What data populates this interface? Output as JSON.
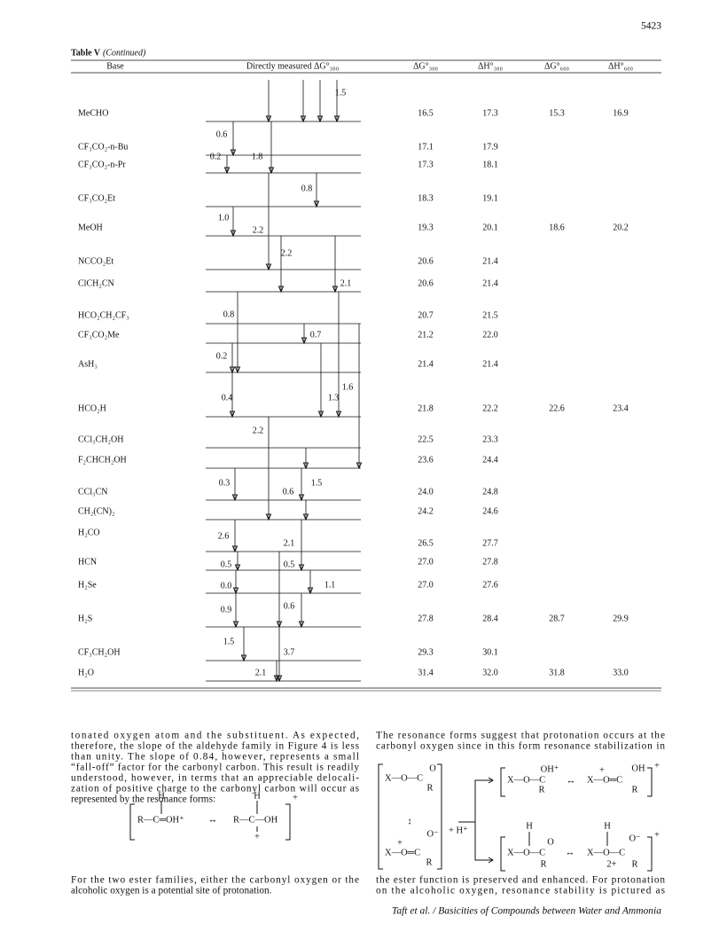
{
  "page_number": "5423",
  "table": {
    "caption": "Table V",
    "caption_note": "(Continued)",
    "headers": [
      "Base",
      "Directly measured ΔG°₃₀₀",
      "ΔG°₃₀₀",
      "ΔH°₃₀₀",
      "ΔG°₆₀₀",
      "ΔH°₆₀₀"
    ],
    "rows": [
      [
        "MeCHO",
        "16.5",
        "17.3",
        "15.3",
        "16.9"
      ],
      [
        "CF₃CO₂-n-Bu",
        "17.1",
        "17.9"
      ],
      [
        "CF₃CO₂-n-Pr",
        "17.3",
        "18.1"
      ],
      [
        "CF₃CO₂Et",
        "18.3",
        "19.1"
      ],
      [
        "MeOH",
        "19.3",
        "20.1",
        "18.6",
        "20.2"
      ],
      [
        "NCCO₂Et",
        "20.6",
        "21.4"
      ],
      [
        "ClCH₂CN",
        "20.6",
        "21.4"
      ],
      [
        "HCO₂CH₂CF₃",
        "20.7",
        "21.5"
      ],
      [
        "CF₃CO₂Me",
        "21.2",
        "22.0"
      ],
      [
        "AsH₃",
        "21.4",
        "21.4"
      ],
      [
        "HCO₂H",
        "21.8",
        "22.2",
        "22.6",
        "23.4"
      ],
      [
        "CCl₃CH₂OH",
        "22.5",
        "23.3"
      ],
      [
        "F₂CHCH₂OH",
        "23.6",
        "24.4"
      ],
      [
        "CCl₃CN",
        "24.0",
        "24.8"
      ],
      [
        "CH₂(CN)₂",
        "24.2",
        "24.6"
      ],
      [
        "H₂CO",
        "26.5",
        "27.7"
      ],
      [
        "HCN",
        "27.0",
        "27.8"
      ],
      [
        "H₂Se",
        "27.0",
        "27.6"
      ],
      [
        "H₂S",
        "27.8",
        "28.4",
        "28.7",
        "29.9"
      ],
      [
        "CF₃CH₂OH",
        "29.3",
        "30.1"
      ],
      [
        "H₂O",
        "31.4",
        "32.0",
        "31.8",
        "33.0"
      ]
    ],
    "ladder_labels": [
      "1.5",
      "0.6",
      "0.2",
      "1.8",
      "0.8",
      "1.0",
      "2.2",
      "2.2",
      "2.1",
      "0.8",
      "0.7",
      "0.2",
      "1.6",
      "0.4",
      "1.3",
      "2.2",
      "0.3",
      "0.6",
      "1.5",
      "2.6",
      "2.1",
      "0.5",
      "0.5",
      "0.0",
      "1.1",
      "0.6",
      "0.9",
      "1.5",
      "3.7",
      "2.1"
    ]
  },
  "left_column": {
    "paragraph_1": [
      "tonated oxygen atom and the substituent. As expected,",
      "therefore, the slope of the aldehyde family in Figure 4 is less",
      "than unity. The slope of 0.84, however, represents a small",
      "“fall-off” factor for the carbonyl carbon. This result is readily",
      "understood, however, in terms that an appreciable delocali-",
      "zation of positive charge to the carbonyl carbon will occur as",
      "represented by the resonance forms:"
    ],
    "structure": [
      "H",
      "R—C═OH⁺",
      "↔",
      "H",
      "R—C—OH",
      "+",
      "+"
    ],
    "paragraph_2": [
      "For the two ester families, either the carbonyl oxygen or the",
      "alcoholic oxygen is a potential site of protonation."
    ]
  },
  "right_column": {
    "paragraph_1": [
      "The resonance forms suggest that protonation occurs at the",
      "carbonyl oxygen since in this form resonance stabilization in"
    ],
    "structure": [
      "X—O—C",
      "O",
      "R",
      "↕",
      "X—O═C",
      "+",
      "O⁻",
      "R",
      "+ H⁺",
      "X—O—C",
      "OH⁺",
      "R",
      "↔",
      "X—O═C",
      "+",
      "OH",
      "R",
      "+",
      "H",
      "X—O—C",
      "O",
      "R",
      "↔",
      "H",
      "X—O—C",
      "O⁻",
      "R",
      "2+",
      "+"
    ],
    "paragraph_2": [
      "the ester function is preserved and enhanced. For protonation",
      "on the alcoholic oxygen, resonance stability is pictured as"
    ]
  },
  "footer": "Taft et al. / Basicities of Compounds between Water and Ammonia"
}
